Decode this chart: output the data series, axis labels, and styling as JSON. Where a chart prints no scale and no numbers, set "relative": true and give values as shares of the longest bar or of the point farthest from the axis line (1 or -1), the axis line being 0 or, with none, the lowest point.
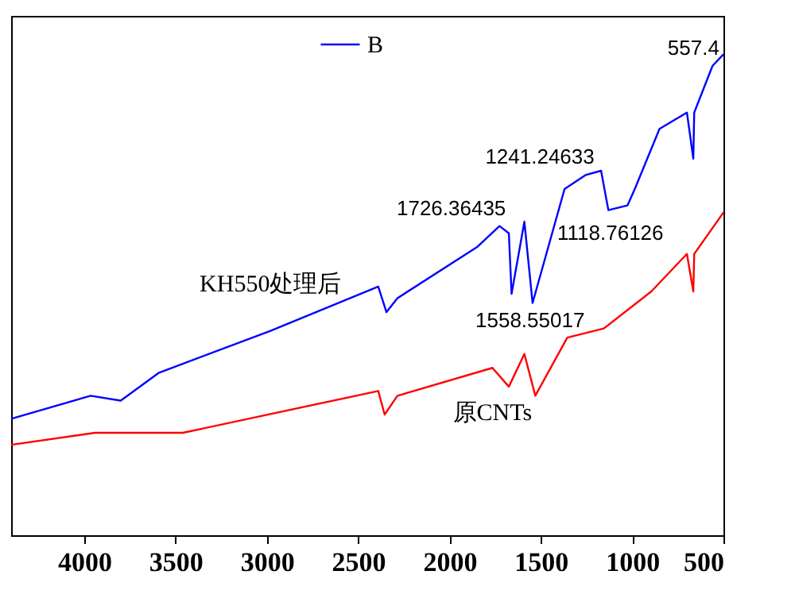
{
  "chart_data": {
    "type": "line",
    "relative": true,
    "legend": "top",
    "grid": false,
    "marker": "none",
    "line_style": "solid",
    "xlim": [
      4400,
      500
    ],
    "xticks": [
      4000,
      3500,
      3000,
      2500,
      2000,
      1500,
      1000,
      500
    ],
    "series": [
      {
        "name": "B",
        "color": "#0000ff",
        "x": [
          4400,
          3965,
          3800,
          3590,
          2980,
          2390,
          2345,
          2285,
          1850,
          1726,
          1675,
          1660,
          1590,
          1545,
          1370,
          1255,
          1170,
          1130,
          1025,
          980,
          850,
          700,
          665,
          660,
          560,
          500
        ],
        "values": [
          0.242,
          0.29,
          0.28,
          0.338,
          0.425,
          0.517,
          0.464,
          0.493,
          0.599,
          0.643,
          0.628,
          0.502,
          0.652,
          0.483,
          0.72,
          0.749,
          0.758,
          0.676,
          0.686,
          0.725,
          0.845,
          0.879,
          0.783,
          0.879,
          0.976,
          1.0
        ]
      },
      {
        "color": "#ff0000",
        "x": [
          4400,
          3940,
          3460,
          2390,
          2355,
          2285,
          1765,
          1675,
          1590,
          1530,
          1355,
          1155,
          895,
          700,
          665,
          660,
          500
        ],
        "values": [
          0.188,
          0.213,
          0.213,
          0.3,
          0.251,
          0.29,
          0.348,
          0.309,
          0.377,
          0.29,
          0.411,
          0.43,
          0.507,
          0.585,
          0.507,
          0.585,
          0.671
        ]
      }
    ],
    "annotations": [
      {
        "text": "1726.36435",
        "x": 1726,
        "y": 0.643
      },
      {
        "text": "1241.24633",
        "x": 1241,
        "y": 0.749
      },
      {
        "text": "1118.76126",
        "x": 1119,
        "y": 0.671
      },
      {
        "text": "1558.55017",
        "x": 1559,
        "y": 0.488
      },
      {
        "text": "557.4",
        "x": 557,
        "y": 0.976
      },
      "KH550处理后",
      "原CNTs"
    ]
  }
}
